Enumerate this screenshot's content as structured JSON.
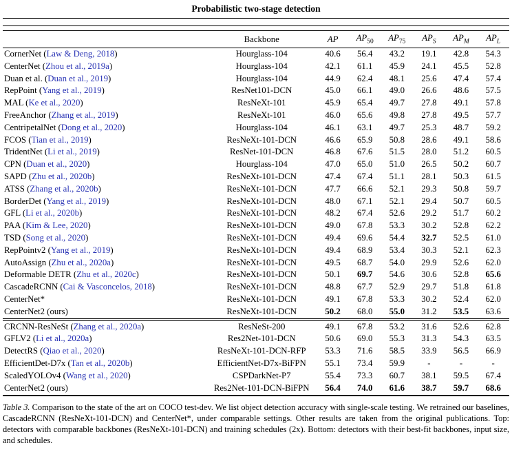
{
  "title": "Probabilistic two-stage detection",
  "colors": {
    "link_blue": "#2832b4"
  },
  "table": {
    "backbone_header": "Backbone",
    "metric_columns": [
      {
        "main": "AP",
        "sub": ""
      },
      {
        "main": "AP",
        "sub": "50"
      },
      {
        "main": "AP",
        "sub": "75"
      },
      {
        "main": "AP",
        "sub": "S"
      },
      {
        "main": "AP",
        "sub": "M"
      },
      {
        "main": "AP",
        "sub": "L"
      }
    ],
    "sections": [
      {
        "rows": [
          {
            "method": "CornerNet (",
            "cite": "Law & Deng, 2018",
            "suffix": ")",
            "backbone": "Hourglass-104",
            "values": [
              "40.6",
              "56.4",
              "43.2",
              "19.1",
              "42.8",
              "54.3"
            ],
            "bold": []
          },
          {
            "method": "CenterNet (",
            "cite": "Zhou et al., 2019a",
            "suffix": ")",
            "backbone": "Hourglass-104",
            "values": [
              "42.1",
              "61.1",
              "45.9",
              "24.1",
              "45.5",
              "52.8"
            ],
            "bold": []
          },
          {
            "method": "Duan et al. (",
            "cite": "Duan et al., 2019",
            "suffix": ")",
            "backbone": "Hourglass-104",
            "values": [
              "44.9",
              "62.4",
              "48.1",
              "25.6",
              "47.4",
              "57.4"
            ],
            "bold": []
          },
          {
            "method": "RepPoint (",
            "cite": "Yang et al., 2019",
            "suffix": ")",
            "backbone": "ResNet101-DCN",
            "values": [
              "45.0",
              "66.1",
              "49.0",
              "26.6",
              "48.6",
              "57.5"
            ],
            "bold": []
          },
          {
            "method": "MAL (",
            "cite": "Ke et al., 2020",
            "suffix": ")",
            "backbone": "ResNeXt-101",
            "values": [
              "45.9",
              "65.4",
              "49.7",
              "27.8",
              "49.1",
              "57.8"
            ],
            "bold": []
          },
          {
            "method": "FreeAnchor (",
            "cite": "Zhang et al., 2019",
            "suffix": ")",
            "backbone": "ResNeXt-101",
            "values": [
              "46.0",
              "65.6",
              "49.8",
              "27.8",
              "49.5",
              "57.7"
            ],
            "bold": []
          },
          {
            "method": "CentripetalNet (",
            "cite": "Dong et al., 2020",
            "suffix": ")",
            "backbone": "Hourglass-104",
            "values": [
              "46.1",
              "63.1",
              "49.7",
              "25.3",
              "48.7",
              "59.2"
            ],
            "bold": []
          },
          {
            "method": "FCOS (",
            "cite": "Tian et al., 2019",
            "suffix": ")",
            "backbone": "ResNeXt-101-DCN",
            "values": [
              "46.6",
              "65.9",
              "50.8",
              "28.6",
              "49.1",
              "58.6"
            ],
            "bold": []
          },
          {
            "method": "TridentNet (",
            "cite": "Li et al., 2019",
            "suffix": ")",
            "backbone": "ResNet-101-DCN",
            "values": [
              "46.8",
              "67.6",
              "51.5",
              "28.0",
              "51.2",
              "60.5"
            ],
            "bold": []
          },
          {
            "method": "CPN (",
            "cite": "Duan et al., 2020",
            "suffix": ")",
            "backbone": "Hourglass-104",
            "values": [
              "47.0",
              "65.0",
              "51.0",
              "26.5",
              "50.2",
              "60.7"
            ],
            "bold": []
          },
          {
            "method": "SAPD (",
            "cite": "Zhu et al., 2020b",
            "suffix": ")",
            "backbone": "ResNeXt-101-DCN",
            "values": [
              "47.4",
              "67.4",
              "51.1",
              "28.1",
              "50.3",
              "61.5"
            ],
            "bold": []
          },
          {
            "method": "ATSS (",
            "cite": "Zhang et al., 2020b",
            "suffix": ")",
            "backbone": "ResNeXt-101-DCN",
            "values": [
              "47.7",
              "66.6",
              "52.1",
              "29.3",
              "50.8",
              "59.7"
            ],
            "bold": []
          },
          {
            "method": "BorderDet (",
            "cite": "Yang et al., 2019",
            "suffix": ")",
            "backbone": "ResNeXt-101-DCN",
            "values": [
              "48.0",
              "67.1",
              "52.1",
              "29.4",
              "50.7",
              "60.5"
            ],
            "bold": []
          },
          {
            "method": "GFL (",
            "cite": "Li et al., 2020b",
            "suffix": ")",
            "backbone": "ResNeXt-101-DCN",
            "values": [
              "48.2",
              "67.4",
              "52.6",
              "29.2",
              "51.7",
              "60.2"
            ],
            "bold": []
          },
          {
            "method": "PAA (",
            "cite": "Kim & Lee, 2020",
            "suffix": ")",
            "backbone": "ResNeXt-101-DCN",
            "values": [
              "49.0",
              "67.8",
              "53.3",
              "30.2",
              "52.8",
              "62.2"
            ],
            "bold": []
          },
          {
            "method": "TSD (",
            "cite": "Song et al., 2020",
            "suffix": ")",
            "backbone": "ResNeXt-101-DCN",
            "values": [
              "49.4",
              "69.6",
              "54.4",
              "32.7",
              "52.5",
              "61.0"
            ],
            "bold": [
              3
            ]
          },
          {
            "method": "RepPointv2 (",
            "cite": "Yang et al., 2019",
            "suffix": ")",
            "backbone": "ResNeXt-101-DCN",
            "values": [
              "49.4",
              "68.9",
              "53.4",
              "30.3",
              "52.1",
              "62.3"
            ],
            "bold": []
          },
          {
            "method": "AutoAssign (",
            "cite": "Zhu et al., 2020a",
            "suffix": ")",
            "backbone": "ResNeXt-101-DCN",
            "values": [
              "49.5",
              "68.7",
              "54.0",
              "29.9",
              "52.6",
              "62.0"
            ],
            "bold": []
          },
          {
            "method": "Deformable DETR (",
            "cite": "Zhu et al., 2020c",
            "suffix": ")",
            "backbone": "ResNeXt-101-DCN",
            "values": [
              "50.1",
              "69.7",
              "54.6",
              "30.6",
              "52.8",
              "65.6"
            ],
            "bold": [
              1,
              5
            ]
          },
          {
            "method": "CascadeRCNN (",
            "cite": "Cai & Vasconcelos, 2018",
            "suffix": ")",
            "backbone": "ResNeXt-101-DCN",
            "values": [
              "48.8",
              "67.7",
              "52.9",
              "29.7",
              "51.8",
              "61.8"
            ],
            "bold": []
          },
          {
            "method": "CenterNet*",
            "cite": "",
            "suffix": "",
            "backbone": "ResNeXt-101-DCN",
            "values": [
              "49.1",
              "67.8",
              "53.3",
              "30.2",
              "52.4",
              "62.0"
            ],
            "bold": []
          },
          {
            "method": "CenterNet2 (ours)",
            "cite": "",
            "suffix": "",
            "backbone": "ResNeXt-101-DCN",
            "values": [
              "50.2",
              "68.0",
              "55.0",
              "31.2",
              "53.5",
              "63.6"
            ],
            "bold": [
              0,
              2,
              4
            ]
          }
        ]
      },
      {
        "rows": [
          {
            "method": "CRCNN-ResNeSt (",
            "cite": "Zhang et al., 2020a",
            "suffix": ")",
            "backbone": "ResNeSt-200",
            "values": [
              "49.1",
              "67.8",
              "53.2",
              "31.6",
              "52.6",
              "62.8"
            ],
            "bold": []
          },
          {
            "method": "GFLV2 (",
            "cite": "Li et al., 2020a",
            "suffix": ")",
            "backbone": "Res2Net-101-DCN",
            "values": [
              "50.6",
              "69.0",
              "55.3",
              "31.3",
              "54.3",
              "63.5"
            ],
            "bold": []
          },
          {
            "method": "DetectRS (",
            "cite": "Qiao et al., 2020",
            "suffix": ")",
            "backbone": "ResNeXt-101-DCN-RFP",
            "values": [
              "53.3",
              "71.6",
              "58.5",
              "33.9",
              "56.5",
              "66.9"
            ],
            "bold": []
          },
          {
            "method": "EfficientDet-D7x (",
            "cite": "Tan et al., 2020b",
            "suffix": ")",
            "backbone": "EfficientNet-D7x-BiFPN",
            "values": [
              "55.1",
              "73.4",
              "59.9",
              "-",
              "-",
              "-"
            ],
            "bold": []
          },
          {
            "method": "ScaledYOLOv4 (",
            "cite": "Wang et al., 2020",
            "suffix": ")",
            "backbone": "CSPDarkNet-P7",
            "values": [
              "55.4",
              "73.3",
              "60.7",
              "38.1",
              "59.5",
              "67.4"
            ],
            "bold": []
          },
          {
            "method": "CenterNet2 (ours)",
            "cite": "",
            "suffix": "",
            "backbone": "Res2Net-101-DCN-BiFPN",
            "values": [
              "56.4",
              "74.0",
              "61.6",
              "38.7",
              "59.7",
              "68.6"
            ],
            "bold": [
              0,
              1,
              2,
              3,
              4,
              5
            ]
          }
        ]
      }
    ]
  },
  "caption": {
    "label": "Table 3.",
    "text": " Comparison to the state of the art on COCO test-dev. We list object detection accuracy with single-scale testing. We retrained our baselines, CascadeRCNN (ResNeXt-101-DCN) and CenterNet*, under comparable settings. Other results are taken from the original publications. Top: detectors with comparable backbones (ResNeXt-101-DCN) and training schedules (2x). Bottom: detectors with their best-fit backbones, input size, and schedules."
  }
}
